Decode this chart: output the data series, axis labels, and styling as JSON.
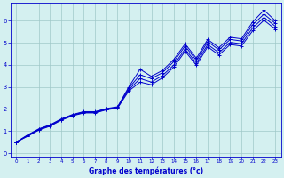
{
  "background_color": "#d4f0f0",
  "grid_color": "#a0c8c8",
  "line_color": "#0000cc",
  "xlabel": "Graphe des températures (°c)",
  "xlim": [
    -0.5,
    23.5
  ],
  "ylim": [
    -0.15,
    6.8
  ],
  "xticks": [
    0,
    1,
    2,
    3,
    4,
    5,
    6,
    7,
    8,
    9,
    10,
    11,
    12,
    13,
    14,
    15,
    16,
    17,
    18,
    19,
    20,
    21,
    22,
    23
  ],
  "yticks": [
    0,
    1,
    2,
    3,
    4,
    5,
    6
  ],
  "series": [
    [
      0.5,
      0.82,
      1.1,
      1.28,
      1.55,
      1.75,
      1.88,
      1.88,
      2.02,
      2.1,
      3.0,
      3.8,
      3.48,
      3.75,
      4.25,
      4.95,
      4.3,
      5.15,
      4.78,
      5.25,
      5.18,
      5.95,
      6.48,
      6.0
    ],
    [
      0.5,
      0.8,
      1.08,
      1.26,
      1.53,
      1.73,
      1.86,
      1.86,
      2.0,
      2.08,
      2.95,
      3.55,
      3.38,
      3.65,
      4.15,
      4.85,
      4.2,
      5.05,
      4.68,
      5.15,
      5.08,
      5.82,
      6.3,
      5.88
    ],
    [
      0.5,
      0.78,
      1.06,
      1.24,
      1.51,
      1.71,
      1.84,
      1.84,
      1.98,
      2.06,
      2.88,
      3.38,
      3.22,
      3.52,
      4.0,
      4.72,
      4.08,
      4.92,
      4.55,
      5.02,
      4.95,
      5.68,
      6.15,
      5.75
    ],
    [
      0.5,
      0.76,
      1.04,
      1.22,
      1.49,
      1.69,
      1.82,
      1.82,
      1.96,
      2.04,
      2.82,
      3.22,
      3.1,
      3.42,
      3.9,
      4.62,
      3.98,
      4.82,
      4.45,
      4.92,
      4.85,
      5.55,
      6.02,
      5.62
    ]
  ]
}
